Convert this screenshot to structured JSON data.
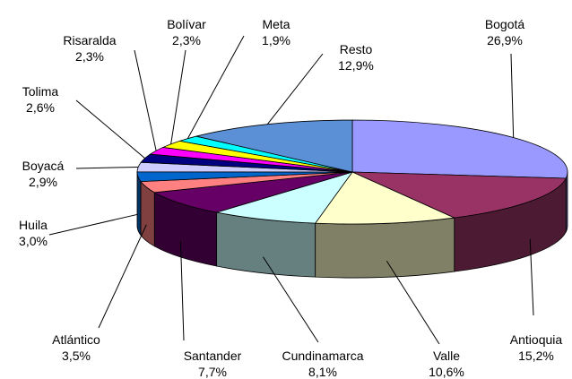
{
  "chart_data": {
    "type": "pie3d",
    "categories": [
      "Bogotá",
      "Antioquia",
      "Valle",
      "Cundinamarca",
      "Santander",
      "Atlántico",
      "Huila",
      "Boyacá",
      "Tolima",
      "Risaralda",
      "Bolívar",
      "Meta",
      "Resto"
    ],
    "values": [
      26.9,
      15.2,
      10.6,
      8.1,
      7.7,
      3.5,
      3.0,
      2.9,
      2.6,
      2.3,
      2.3,
      1.9,
      12.9
    ],
    "value_labels": [
      "26,9%",
      "15,2%",
      "10,6%",
      "8,1%",
      "7,7%",
      "3,5%",
      "3,0%",
      "2,9%",
      "2,6%",
      "2,3%",
      "2,3%",
      "1,9%",
      "12,9%"
    ],
    "colors": [
      "#9999ff",
      "#993366",
      "#ffffcc",
      "#ccffff",
      "#660066",
      "#ff8080",
      "#0066cc",
      "#ccccff",
      "#000080",
      "#ff00ff",
      "#ffff00",
      "#00ffff",
      "#5b8fd6"
    ]
  }
}
